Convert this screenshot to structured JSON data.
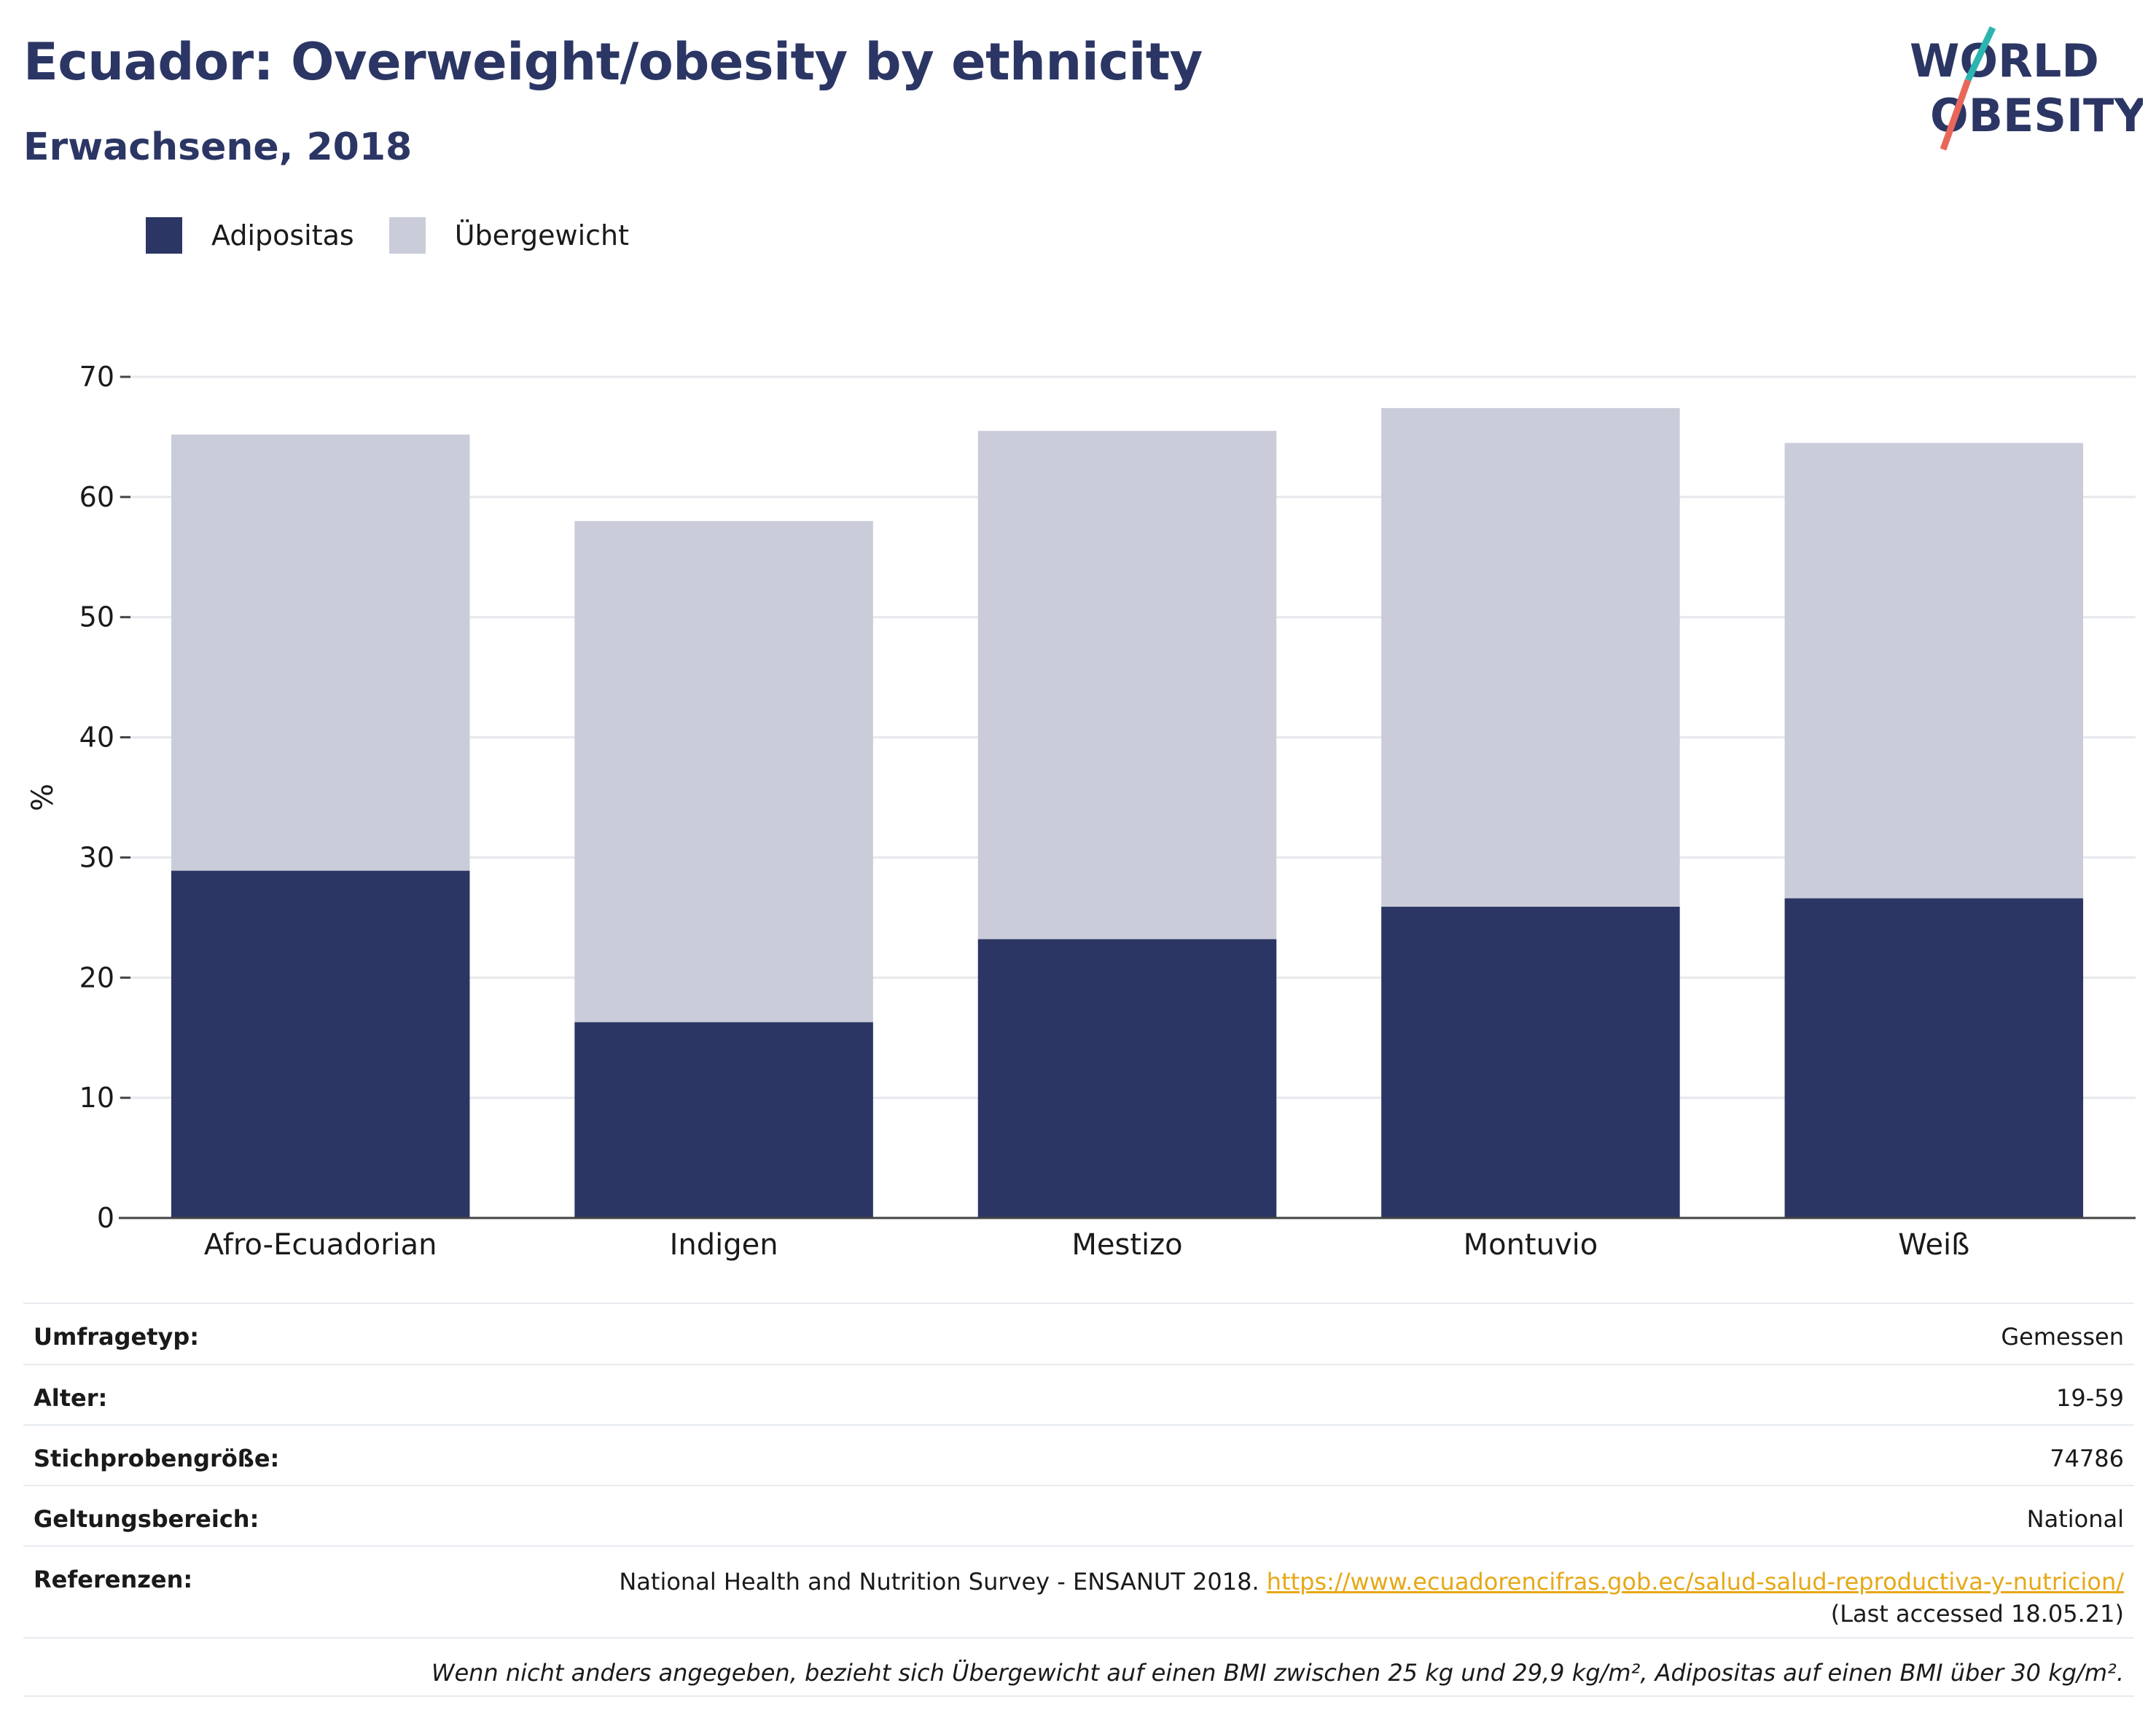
{
  "header": {
    "title": "Ecuador: Overweight/obesity by ethnicity",
    "subtitle": "Erwachsene, 2018"
  },
  "logo": {
    "line1": "WORLD",
    "line2": "OBESITY",
    "colors": {
      "text": "#2b3664",
      "accent_teal": "#2cb5b0",
      "accent_red": "#e8675a"
    }
  },
  "legend": [
    {
      "label": "Adipositas",
      "color": "#2b3664"
    },
    {
      "label": "Übergewicht",
      "color": "#cacdd9"
    }
  ],
  "chart_data": {
    "type": "bar",
    "stacked": true,
    "categories": [
      "Afro-Ecuadorian",
      "Indigen",
      "Mestizo",
      "Montuvio",
      "Weiß"
    ],
    "series": [
      {
        "name": "Adipositas",
        "color": "#2b3664",
        "values": [
          28.9,
          16.3,
          23.2,
          25.9,
          26.6
        ]
      },
      {
        "name": "Übergewicht",
        "color": "#cacdd9",
        "values": [
          36.3,
          41.7,
          42.3,
          41.5,
          37.9
        ]
      }
    ],
    "totals": [
      65.2,
      58.0,
      65.5,
      67.4,
      64.5
    ],
    "ylabel": "%",
    "ylim": [
      0,
      70
    ],
    "yticks": [
      0,
      10,
      20,
      30,
      40,
      50,
      60,
      70
    ],
    "grid": true,
    "legend_position": "top-left"
  },
  "meta": {
    "rows": [
      {
        "key": "Umfragetyp:",
        "value": "Gemessen"
      },
      {
        "key": "Alter:",
        "value": "19-59"
      },
      {
        "key": "Stichprobengröße:",
        "value": "74786"
      },
      {
        "key": "Geltungsbereich:",
        "value": "National"
      }
    ],
    "references": {
      "key": "Referenzen:",
      "text": "National Health and Nutrition Survey - ENSANUT 2018.",
      "link": "https://www.ecuadorencifras.gob.ec/salud-salud-reproductiva-y-nutricion/",
      "accessed": "(Last accessed 18.05.21)"
    },
    "note": "Wenn nicht anders angegeben, bezieht sich Übergewicht auf einen BMI zwischen 25 kg und 29,9 kg/m², Adipositas auf einen BMI über 30 kg/m²."
  }
}
